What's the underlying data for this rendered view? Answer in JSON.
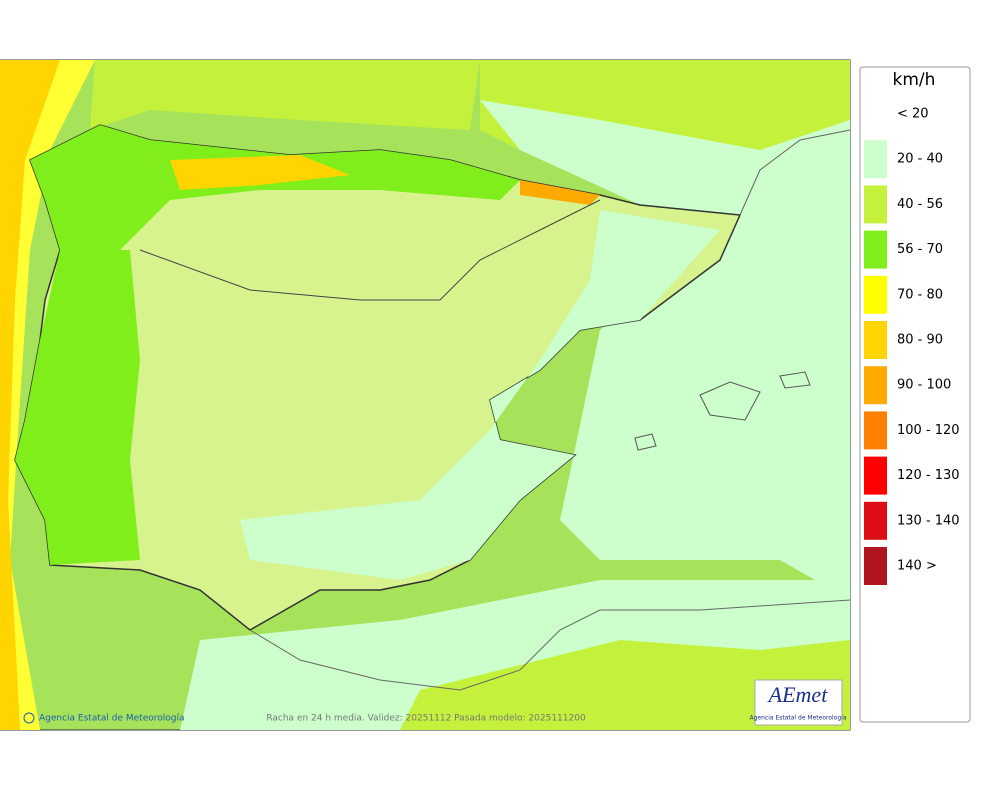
{
  "legend": {
    "title": "km/h",
    "items": [
      {
        "label": "< 20",
        "color": "#ffffff"
      },
      {
        "label": "20 - 40",
        "color": "#ccffcc"
      },
      {
        "label": "40 - 56",
        "color": "#c4f23c"
      },
      {
        "label": "56 - 70",
        "color": "#80ee1a"
      },
      {
        "label": "70 - 80",
        "color": "#ffff00"
      },
      {
        "label": "80 - 90",
        "color": "#ffd400"
      },
      {
        "label": "90 - 100",
        "color": "#ffaa00"
      },
      {
        "label": "100 - 120",
        "color": "#ff8000"
      },
      {
        "label": "120 - 130",
        "color": "#ff0000"
      },
      {
        "label": "130 - 140",
        "color": "#dd0d16"
      },
      {
        "label": "140 >",
        "color": "#b0141e"
      }
    ]
  },
  "footer": {
    "credit": "Agencia Estatal de Meteorología",
    "caption": "Racha en 24 h media. Validez: 20251112 Pasada modelo: 2025111200"
  },
  "logo": {
    "name": "AEmet",
    "subtitle": "Agencia Estatal de Meteorología"
  }
}
